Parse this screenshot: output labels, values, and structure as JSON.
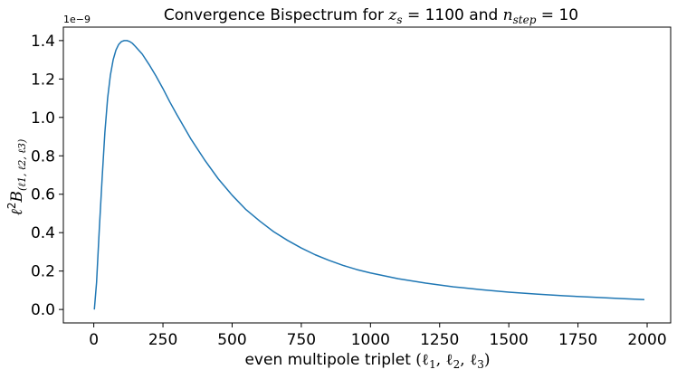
{
  "chart_data": {
    "type": "line",
    "title": {
      "prefix": "Convergence Bispectrum for ",
      "var1": "z",
      "var1_sub": "s",
      "eq1": " = 1100 and ",
      "var2": "n",
      "var2_sub": "step",
      "eq2": " = 10"
    },
    "xlabel": {
      "text": "even multipole triplet ",
      "math": "(ℓ",
      "sub1": "1",
      "sep1": ", ℓ",
      "sub2": "2",
      "sep2": ", ℓ",
      "sub3": "3",
      "close": ")"
    },
    "ylabel": {
      "ell": "ℓ",
      "sup": "2",
      "B": "B",
      "sub": "(ℓ1, ℓ2, ℓ3)"
    },
    "y_offset_label": "1e−9",
    "xlim": [
      -110,
      2085
    ],
    "ylim": [
      -0.07,
      1.47
    ],
    "y_multiplier": 1e-09,
    "xticks": [
      0,
      250,
      500,
      750,
      1000,
      1250,
      1500,
      1750,
      2000
    ],
    "xtick_labels": [
      "0",
      "250",
      "500",
      "750",
      "1000",
      "1250",
      "1500",
      "1750",
      "2000"
    ],
    "yticks": [
      0.0,
      0.2,
      0.4,
      0.6,
      0.8,
      1.0,
      1.2,
      1.4
    ],
    "ytick_labels": [
      "0.0",
      "0.2",
      "0.4",
      "0.6",
      "0.8",
      "1.0",
      "1.2",
      "1.4"
    ],
    "grid": false,
    "series": [
      {
        "color": "#1f77b4",
        "x": [
          2,
          10,
          20,
          30,
          40,
          50,
          60,
          70,
          80,
          90,
          100,
          110,
          120,
          130,
          140,
          150,
          175,
          200,
          225,
          250,
          275,
          300,
          350,
          400,
          450,
          500,
          550,
          600,
          650,
          700,
          750,
          800,
          850,
          900,
          950,
          1000,
          1100,
          1200,
          1300,
          1400,
          1500,
          1600,
          1700,
          1800,
          1900,
          1990
        ],
        "y": [
          0.0,
          0.14,
          0.42,
          0.68,
          0.92,
          1.1,
          1.22,
          1.3,
          1.35,
          1.38,
          1.395,
          1.4,
          1.4,
          1.395,
          1.385,
          1.37,
          1.33,
          1.275,
          1.215,
          1.15,
          1.08,
          1.015,
          0.89,
          0.78,
          0.68,
          0.595,
          0.52,
          0.46,
          0.405,
          0.36,
          0.32,
          0.285,
          0.256,
          0.23,
          0.208,
          0.19,
          0.16,
          0.137,
          0.118,
          0.103,
          0.09,
          0.08,
          0.071,
          0.064,
          0.057,
          0.051
        ]
      }
    ]
  }
}
